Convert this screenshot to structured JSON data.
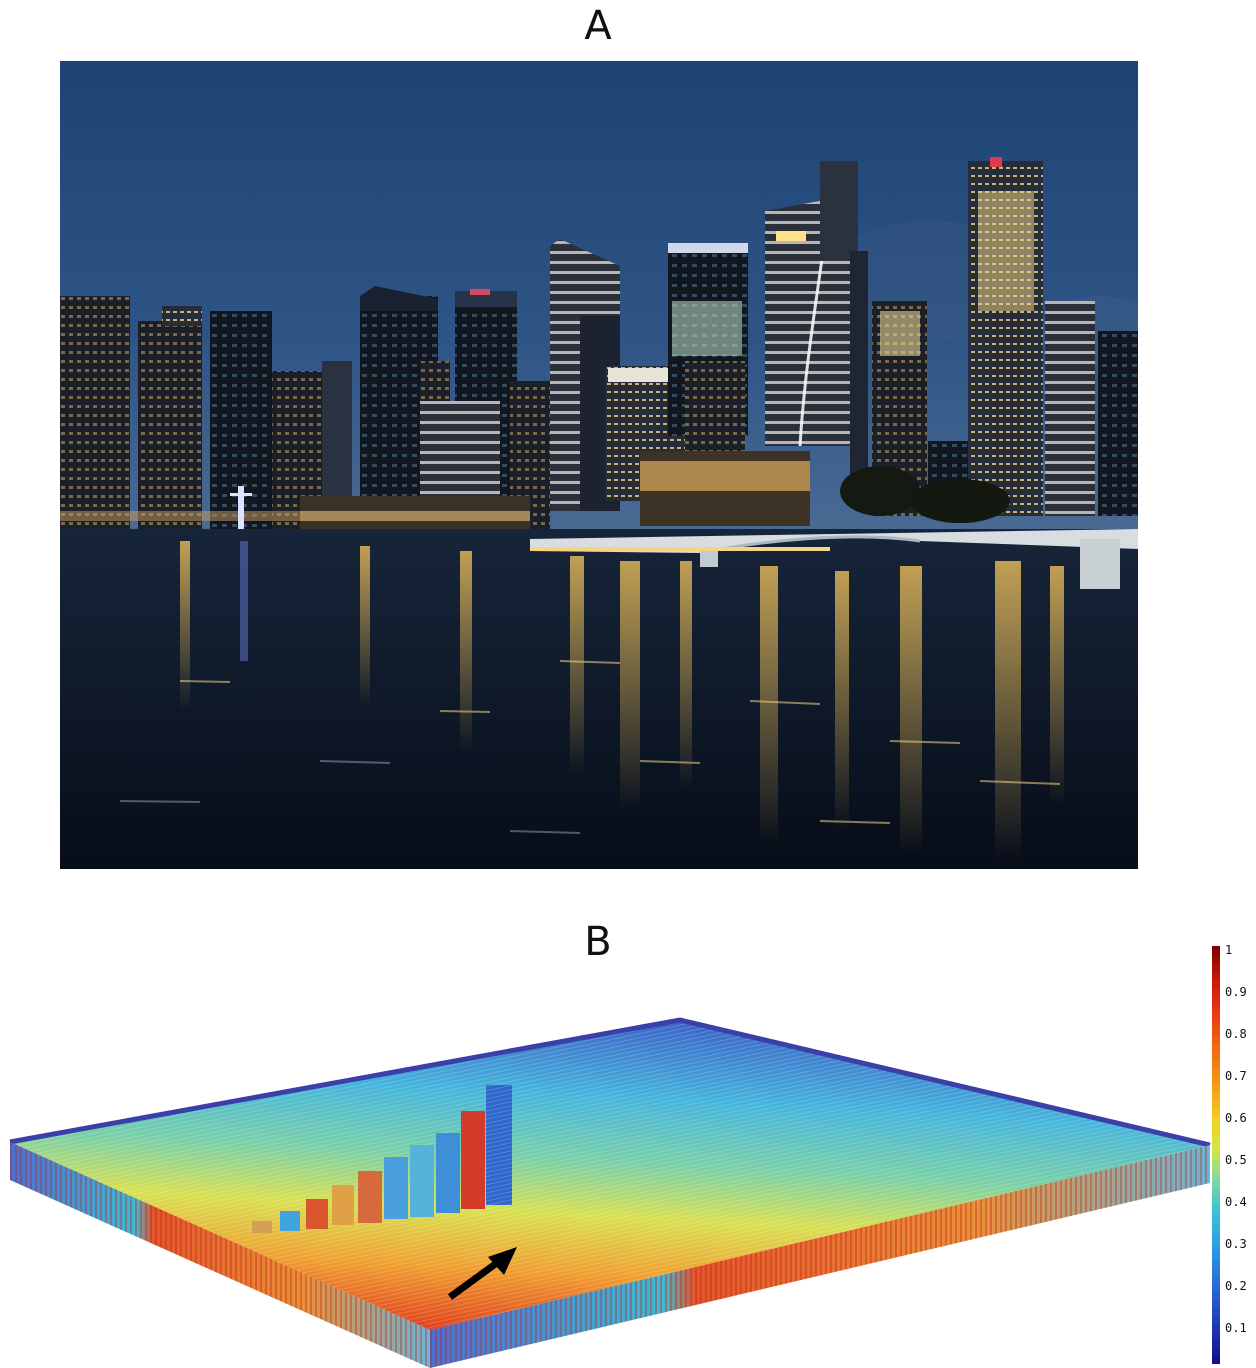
{
  "panels": {
    "a_label": "A",
    "b_label": "B"
  },
  "colorbar": {
    "ticks": [
      "1",
      "0.9",
      "0.8",
      "0.7",
      "0.6",
      "0.5",
      "0.4",
      "0.3",
      "0.2",
      "0.1"
    ],
    "colormap": [
      "#7f0000",
      "#d91c0d",
      "#f59a16",
      "#f2d321",
      "#7fd8a0",
      "#3cc4d4",
      "#2567d6",
      "#10108a"
    ]
  },
  "colors": {
    "sky_top": "#1f4577",
    "sky_horizon": "#3a5f8f",
    "water": "#0b1526",
    "light_warm": "#f5c35a",
    "surface_edge_blue": "#3b3fa8",
    "surface_hot": "#e0401c",
    "arrow": "#000000"
  }
}
